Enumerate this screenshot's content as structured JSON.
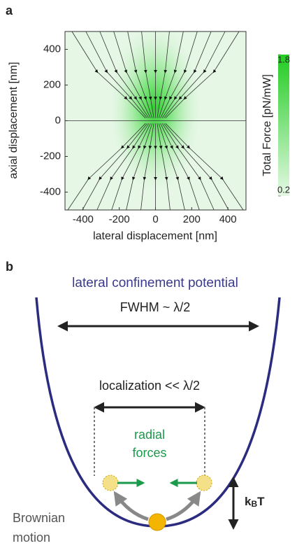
{
  "panel_a": {
    "label": "a",
    "x_axis": {
      "title": "lateral displacement [nm]",
      "lim": [
        -500,
        500
      ],
      "ticks": [
        -400,
        -200,
        0,
        200,
        400
      ]
    },
    "y_axis": {
      "title": "axial displacement [nm]",
      "lim": [
        -500,
        500
      ],
      "ticks": [
        -400,
        -200,
        0,
        200,
        400
      ]
    },
    "colorbar": {
      "title": "Total Force [pN/mW]",
      "lim": [
        0.2,
        1.8
      ],
      "ticks": [
        0.2,
        1.8
      ],
      "color": "#22cc22"
    }
  },
  "panel_b": {
    "label": "b",
    "title": "lateral confinement potential",
    "fwhm": "FWHM ~ λ/2",
    "localization": "localization << λ/2",
    "forces": [
      "radial",
      "forces"
    ],
    "energy": [
      "k",
      "B",
      "T"
    ],
    "brownian": [
      "Brownian",
      "motion"
    ]
  }
}
